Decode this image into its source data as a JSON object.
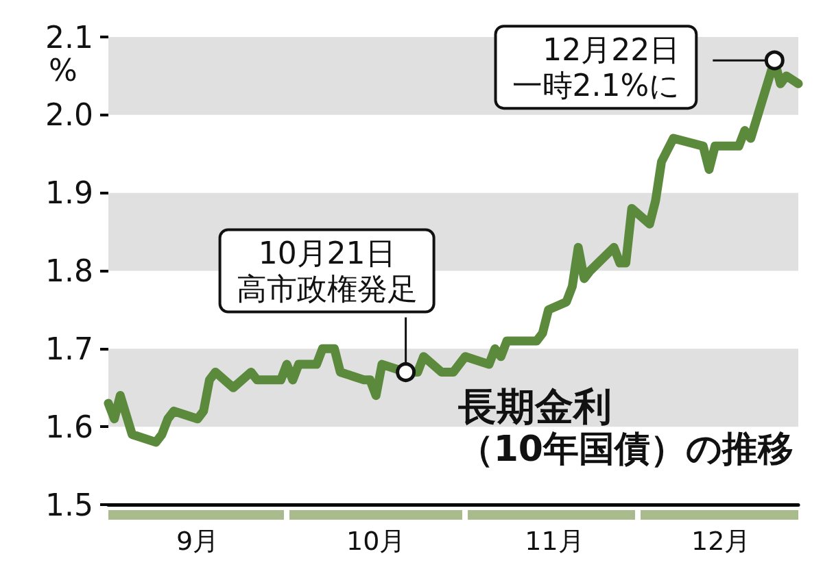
{
  "chart_data": {
    "type": "line",
    "title": "長期金利",
    "subtitle": "（10年国債）の推移",
    "ylabel": "%",
    "x": [
      "--09-01",
      "--09-02",
      "--09-03",
      "--09-05",
      "--09-09",
      "--09-10",
      "--09-11",
      "--09-12",
      "--09-16",
      "--09-17",
      "--09-18",
      "--09-19",
      "--09-22",
      "--09-25",
      "--09-26",
      "--09-30",
      "--10-01",
      "--10-02",
      "--10-03",
      "--10-06",
      "--10-07",
      "--10-09",
      "--10-10",
      "--10-14",
      "--10-15",
      "--10-16",
      "--10-17",
      "--10-21",
      "--10-23",
      "--10-24",
      "--10-27",
      "--10-28",
      "--10-29",
      "--10-31",
      "--11-04",
      "--11-05",
      "--11-06",
      "--11-07",
      "--11-11",
      "--11-12",
      "--11-13",
      "--11-14",
      "--11-17",
      "--11-18",
      "--11-19",
      "--11-20",
      "--11-21",
      "--11-25",
      "--11-26",
      "--11-27",
      "--11-28",
      "--12-01",
      "--12-02",
      "--12-03",
      "--12-05",
      "--12-10",
      "--12-11",
      "--12-12",
      "--12-15",
      "--12-16",
      "--12-17",
      "--12-18",
      "--12-22",
      "--12-23",
      "--12-24",
      "--12-26"
    ],
    "series": [
      {
        "color": "#5b8a3c",
        "values": [
          1.63,
          1.61,
          1.64,
          1.59,
          1.58,
          1.59,
          1.61,
          1.62,
          1.61,
          1.62,
          1.66,
          1.67,
          1.65,
          1.67,
          1.66,
          1.66,
          1.68,
          1.66,
          1.68,
          1.68,
          1.7,
          1.7,
          1.67,
          1.66,
          1.66,
          1.64,
          1.68,
          1.67,
          1.67,
          1.69,
          1.67,
          1.67,
          1.67,
          1.69,
          1.68,
          1.7,
          1.69,
          1.71,
          1.71,
          1.71,
          1.72,
          1.75,
          1.76,
          1.78,
          1.83,
          1.79,
          1.8,
          1.83,
          1.81,
          1.81,
          1.88,
          1.86,
          1.89,
          1.94,
          1.97,
          1.96,
          1.93,
          1.96,
          1.96,
          1.96,
          1.98,
          1.97,
          2.07,
          2.04,
          2.05,
          2.04
        ]
      }
    ],
    "xlim": [
      "--09-01",
      "--12-26"
    ],
    "xticks": [
      {
        "value": "--09-16",
        "label": "9月"
      },
      {
        "value": "--10-16",
        "label": "10月"
      },
      {
        "value": "--11-15",
        "label": "11月"
      },
      {
        "value": "--12-13",
        "label": "12月"
      }
    ],
    "ylim": [
      1.5,
      2.1
    ],
    "yticks": [
      1.5,
      1.6,
      1.7,
      1.8,
      1.9,
      {
        "value": 2,
        "label": "2.0"
      },
      2.1
    ],
    "bands": [
      {
        "axis": "y",
        "from": 1.6,
        "to": 1.7,
        "color": "#e0e0e0"
      },
      {
        "axis": "y",
        "from": 1.8,
        "to": 1.9,
        "color": "#e0e0e0"
      },
      {
        "axis": "y",
        "from": 2.0,
        "to": 2.1,
        "color": "#e0e0e0"
      }
    ],
    "annotations": [
      {
        "text": "10月21日高市政権発足",
        "x": "--10-21",
        "y": 1.67
      },
      {
        "text": "12月22日一時2.1%に",
        "x": "--12-22",
        "y": 2.07
      }
    ],
    "grid": false,
    "line_style": "solid"
  }
}
